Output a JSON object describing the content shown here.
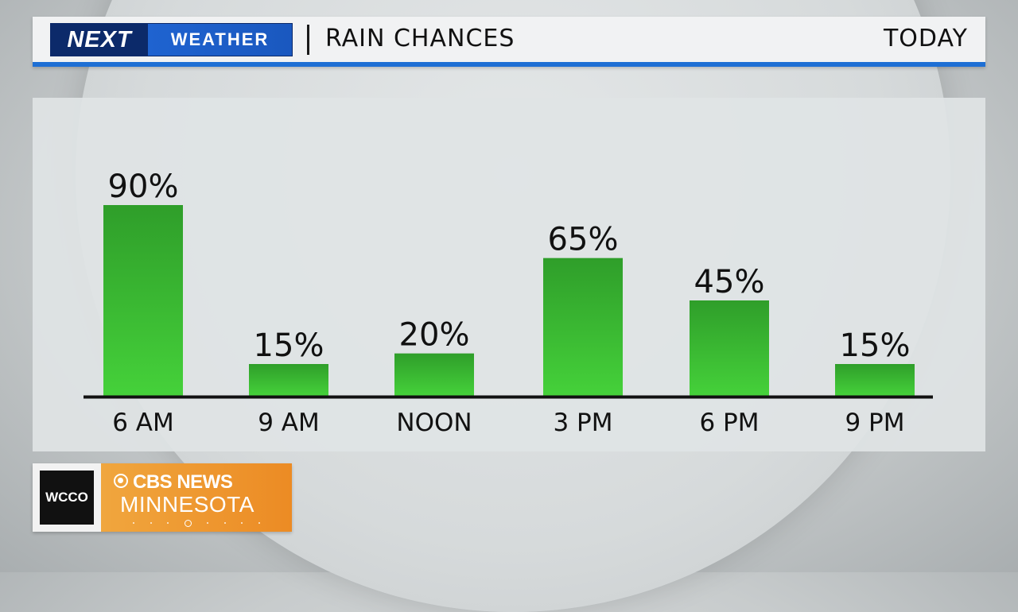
{
  "header": {
    "brand_next": "NEXT",
    "brand_weather": "WEATHER",
    "title": "RAIN CHANCES",
    "period": "TODAY"
  },
  "logo": {
    "station": "WCCO",
    "network": "CBS NEWS",
    "region": "MINNESOTA"
  },
  "colors": {
    "bar_top": "#2f9e2a",
    "bar_bottom": "#45d13a",
    "header_accent": "#1e6fd4",
    "brand_dark": "#0c2a6a"
  },
  "chart_data": {
    "type": "bar",
    "title": "RAIN CHANCES",
    "categories": [
      "6 AM",
      "9 AM",
      "NOON",
      "3 PM",
      "6 PM",
      "9 PM"
    ],
    "values": [
      90,
      15,
      20,
      65,
      45,
      15
    ],
    "value_labels": [
      "90%",
      "15%",
      "20%",
      "65%",
      "45%",
      "15%"
    ],
    "unit": "%",
    "ylim": [
      0,
      100
    ],
    "grid": false,
    "legend": "none"
  }
}
